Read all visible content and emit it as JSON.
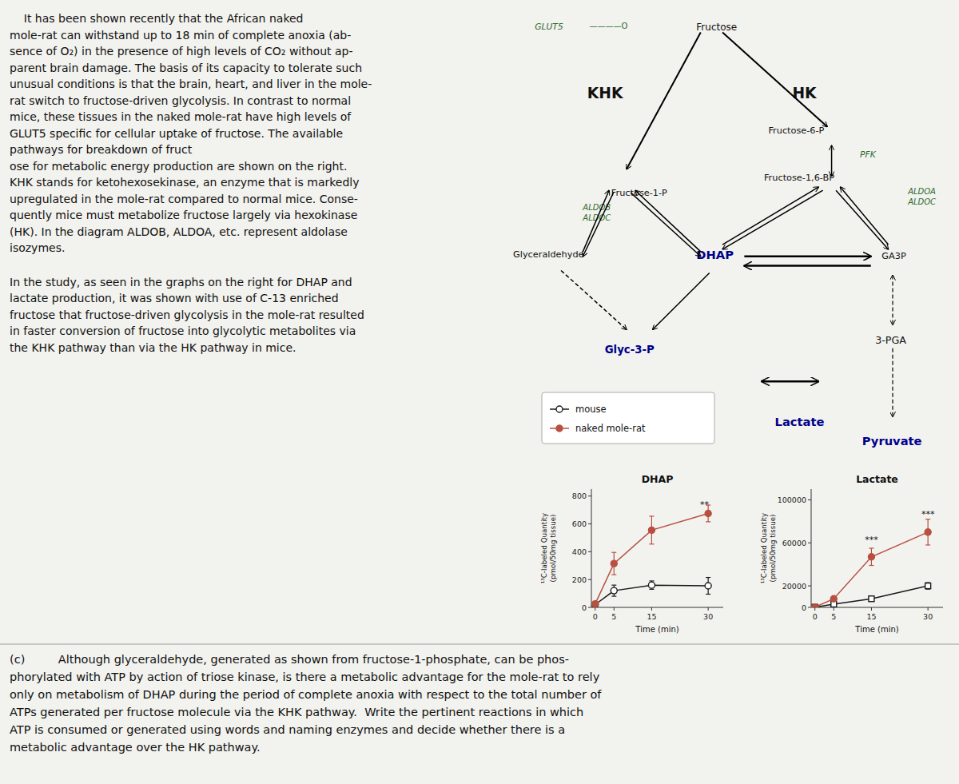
{
  "page": {
    "background": "#f2f2ee",
    "passage": [
      [
        "    It has been shown recently that the African naked",
        "mole-rat can withstand up to 18 min of complete anoxia (ab-",
        "sence of O₂) in the presence of high levels of CO₂ without ap-",
        "parent brain damage. The basis of its capacity to tolerate such",
        "unusual conditions is that the brain, heart, and liver in the mole-",
        "rat switch to fructose-driven glycolysis. In contrast to normal",
        "mice, these tissues in the naked mole-rat have high levels of",
        "GLUT5 specific for cellular uptake of fructose. The available",
        "pathways for breakdown of fruct",
        "ose for metabolic energy production are shown on the right.",
        "KHK stands for ketohexosekinase, an enzyme that is markedly",
        "upregulated in the mole-rat compared to normal mice. Conse-",
        "quently mice must metabolize fructose largely via hexokinase",
        "(HK). In the diagram ALDOB, ALDOA, etc. represent aldolase",
        "isozymes."
      ],
      [
        "In the study, as seen in the graphs on the right for DHAP and",
        "lactate production, it was shown with use of C-13 enriched",
        "fructose that fructose-driven glycolysis in the mole-rat resulted",
        "in faster conversion of fructose into glycolytic metabolites via",
        "the KHK pathway than via the HK pathway in mice."
      ]
    ],
    "question": [
      "(c)         Although glyceraldehyde, generated as shown from fructose-1-phosphate, can be phos-",
      "phorylated with ATP by action of triose kinase, is there a metabolic advantage for the mole-rat to rely",
      "only on metabolism of DHAP during the period of complete anoxia with respect to the total number of",
      "ATPs generated per fructose molecule via the KHK pathway.  Write the pertinent reactions in which",
      "ATP is consumed or generated using words and naming enzymes and decide whether there is a",
      "metabolic advantage over the HK pathway."
    ],
    "diagram": {
      "enzyme_color": "#2d6a2d",
      "highlight_color": "#00008B",
      "labels": {
        "glut5": "GLUT5",
        "membrane": "————O",
        "fructose": "Fructose",
        "khk": "KHK",
        "hk": "HK",
        "f6p": "Fructose-6-P",
        "pfk": "PFK",
        "f16bp": "Fructose-1,6-BP",
        "aldoa_right": "ALDOA",
        "aldoc_right": "ALDOC",
        "f1p": "Fructose-1-P",
        "aldob_left": "ALDOB",
        "aldoc_left": "ALDOC",
        "glyceraldehyde": "Glyceraldehyde",
        "dhap": "DHAP",
        "ga3p": "GA3P",
        "glyc3p": "Glyc-3-P",
        "pga3": "3-PGA",
        "lactate": "Lactate",
        "pyruvate": "Pyruvate"
      }
    }
  },
  "chart_data": [
    {
      "type": "line",
      "title": "DHAP",
      "xlabel": "Time (min)",
      "ylabel": "¹³C-labeled Quantity\n(pmol/50mg tissue)",
      "x": [
        0,
        5,
        15,
        30
      ],
      "xlim": [
        -1,
        34
      ],
      "xticks": [
        0,
        5,
        15,
        30
      ],
      "ylim": [
        0,
        850
      ],
      "yticks": [
        0,
        200,
        400,
        600,
        800
      ],
      "grid": false,
      "legend": "upper left",
      "series": [
        {
          "name": "mouse",
          "color": "#1a1a1a",
          "marker": "open-circle",
          "line_style": "solid",
          "values": [
            20,
            120,
            160,
            155
          ],
          "errors": [
            5,
            40,
            30,
            60
          ]
        },
        {
          "name": "naked mole-rat",
          "color": "#b85040",
          "marker": "circle",
          "line_style": "solid",
          "values": [
            25,
            315,
            555,
            675
          ],
          "errors": [
            8,
            80,
            100,
            60
          ]
        }
      ],
      "annotations": [
        {
          "text": "**",
          "x": 29,
          "y": 720
        }
      ]
    },
    {
      "type": "line",
      "title": "Lactate",
      "xlabel": "Time (min)",
      "ylabel": "¹³C-labeled Quantity\n(pmol/50mg tissue)",
      "x": [
        0,
        5,
        15,
        30
      ],
      "xlim": [
        -1,
        34
      ],
      "xticks": [
        0,
        5,
        15,
        30
      ],
      "ylim": [
        0,
        110000
      ],
      "yticks": [
        0,
        20000,
        60000,
        100000
      ],
      "grid": false,
      "series": [
        {
          "color": "#1a1a1a",
          "marker": "open-square",
          "line_style": "solid",
          "values": [
            200,
            3000,
            8000,
            20000
          ],
          "errors": [
            100,
            500,
            1500,
            3000
          ]
        },
        {
          "color": "#b85040",
          "marker": "circle",
          "line_style": "solid",
          "values": [
            200,
            8000,
            47000,
            70000
          ],
          "errors": [
            100,
            1500,
            8000,
            12000
          ]
        }
      ],
      "annotations": [
        {
          "text": "***",
          "x": 15,
          "y": 60000
        },
        {
          "text": "***",
          "x": 30,
          "y": 84000
        }
      ]
    }
  ]
}
